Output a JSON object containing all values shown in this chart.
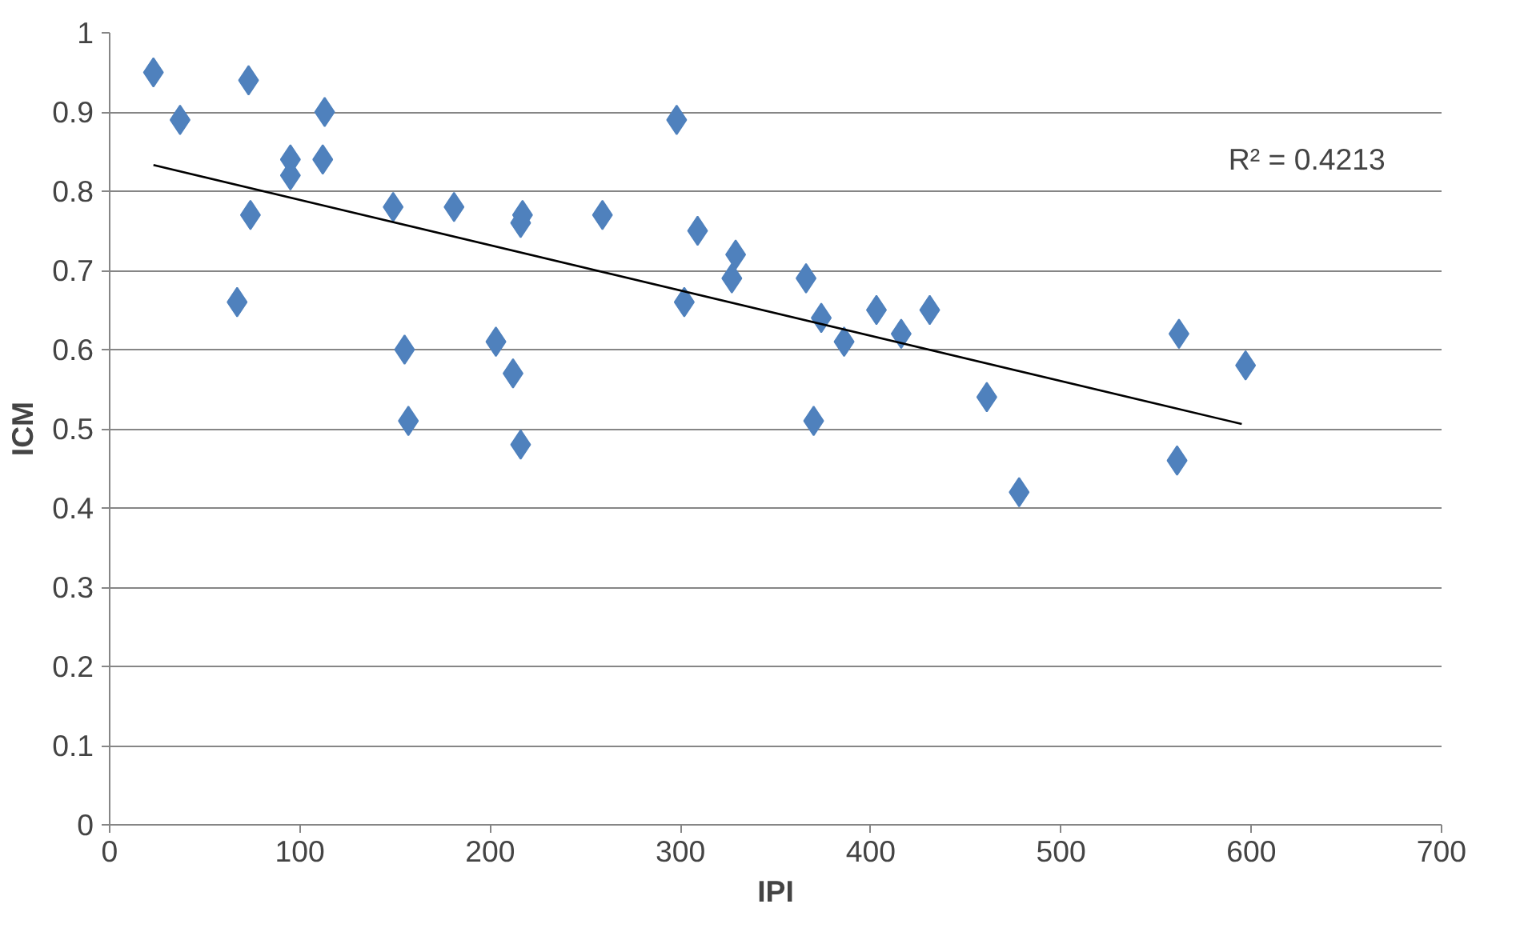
{
  "chart_data": {
    "type": "scatter",
    "xlabel": "IPI",
    "ylabel": "ICM",
    "xlim": [
      0,
      700
    ],
    "xticks": [
      0,
      100,
      200,
      300,
      400,
      500,
      600,
      700
    ],
    "ylim": [
      0,
      1
    ],
    "yticks": [
      {
        "value": 0,
        "label": "0"
      },
      {
        "value": 0.1,
        "label": "0.1"
      },
      {
        "value": 0.2,
        "label": "0.2"
      },
      {
        "value": 0.3,
        "label": "0.3"
      },
      {
        "value": 0.4,
        "label": "0.4"
      },
      {
        "value": 0.5,
        "label": "0.5"
      },
      {
        "value": 0.6,
        "label": "0.6"
      },
      {
        "value": 0.7,
        "label": "0.7"
      },
      {
        "value": 0.8,
        "label": "0.8"
      },
      {
        "value": 0.9,
        "label": "0.9"
      },
      {
        "value": 1,
        "label": "1"
      }
    ],
    "grid": "y",
    "annotations": [
      "R² = 0.4213"
    ],
    "series": [
      {
        "marker": "diamond",
        "color": "#4f81bd",
        "x": [
          23,
          37,
          73,
          67,
          74,
          95,
          95,
          112,
          113,
          149,
          155,
          157,
          181,
          203,
          212,
          216,
          217,
          216,
          259,
          298,
          302,
          309,
          329,
          327,
          366,
          374,
          370,
          386,
          403,
          416,
          431,
          461,
          478,
          562,
          561,
          597
        ],
        "values": [
          0.95,
          0.89,
          0.94,
          0.66,
          0.77,
          0.84,
          0.82,
          0.84,
          0.9,
          0.78,
          0.6,
          0.51,
          0.78,
          0.61,
          0.57,
          0.76,
          0.77,
          0.48,
          0.77,
          0.89,
          0.66,
          0.75,
          0.72,
          0.69,
          0.69,
          0.64,
          0.51,
          0.61,
          0.65,
          0.62,
          0.65,
          0.54,
          0.42,
          0.62,
          0.46,
          0.58
        ]
      },
      {
        "type": "line",
        "color": "#000000",
        "x": [
          23,
          595
        ],
        "values": [
          0.833,
          0.506
        ]
      }
    ]
  }
}
